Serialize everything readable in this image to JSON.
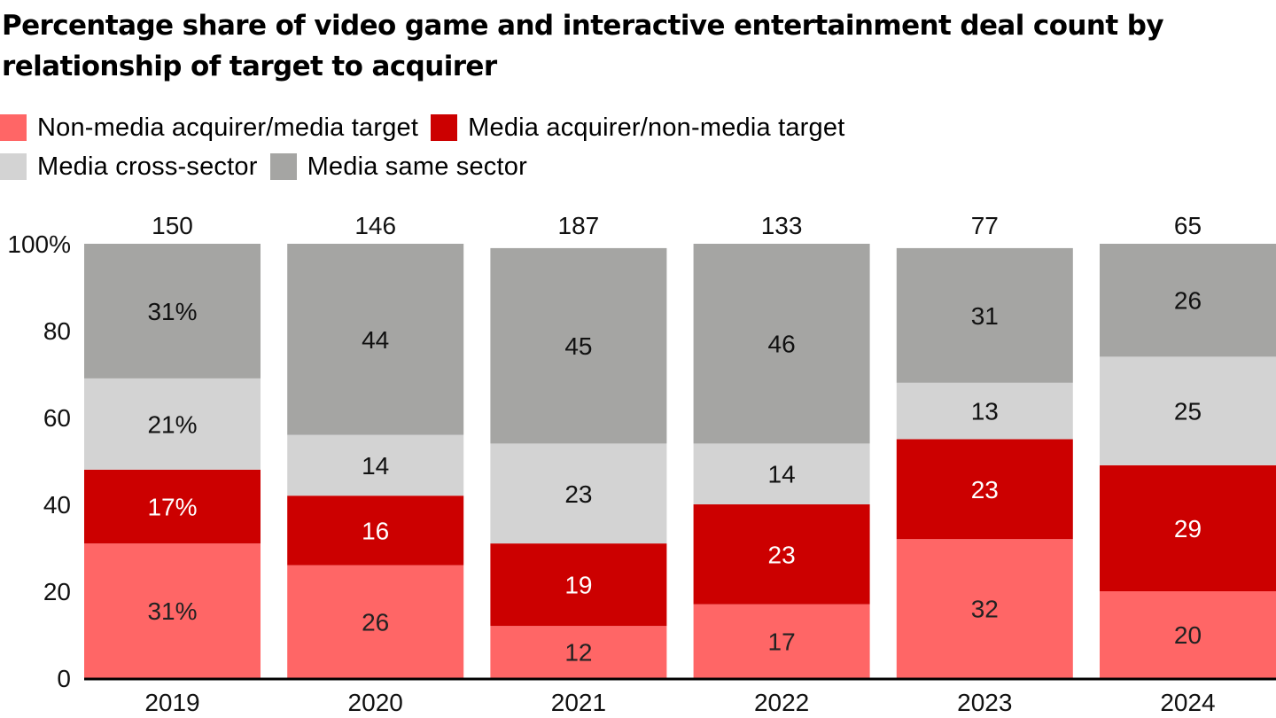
{
  "title": "Percentage share of video game and interactive entertainment deal count by relationship of target to acquirer",
  "legend": {
    "rows": [
      [
        {
          "label": "Non-media acquirer/media target",
          "color": "#ff6666"
        },
        {
          "label": "Media acquirer/non-media target",
          "color": "#cc0000"
        }
      ],
      [
        {
          "label": "Media cross-sector",
          "color": "#d3d3d3"
        },
        {
          "label": "Media same sector",
          "color": "#a5a5a3"
        }
      ]
    ]
  },
  "chart_data": {
    "type": "bar",
    "stacked": true,
    "title": "Percentage share of video game and interactive entertainment deal count by relationship of target to acquirer",
    "xlabel": "",
    "ylabel": "",
    "ylim": [
      0,
      100
    ],
    "yticks": [
      0,
      20,
      40,
      60,
      80,
      100
    ],
    "ytick_labels": [
      "0",
      "20",
      "40",
      "60",
      "80",
      "100%"
    ],
    "grid": false,
    "legend_position": "top-left",
    "categories": [
      "2019",
      "2020",
      "2021",
      "2022",
      "2023",
      "2024"
    ],
    "totals": [
      "150",
      "146",
      "187",
      "133",
      "77",
      "65"
    ],
    "series": [
      {
        "name": "Non-media acquirer/media target",
        "color": "#ff6666",
        "label_color": "#222222",
        "values": [
          31,
          26,
          12,
          17,
          32,
          20
        ],
        "labels": [
          "31%",
          "26",
          "12",
          "17",
          "32",
          "20"
        ]
      },
      {
        "name": "Media acquirer/non-media target",
        "color": "#cc0000",
        "label_color": "#ffffff",
        "values": [
          17,
          16,
          19,
          23,
          23,
          29
        ],
        "labels": [
          "17%",
          "16",
          "19",
          "23",
          "23",
          "29"
        ]
      },
      {
        "name": "Media cross-sector",
        "color": "#d3d3d3",
        "label_color": "#111111",
        "values": [
          21,
          14,
          23,
          14,
          13,
          25
        ],
        "labels": [
          "21%",
          "14",
          "23",
          "14",
          "13",
          "25"
        ]
      },
      {
        "name": "Media same sector",
        "color": "#a5a5a3",
        "label_color": "#111111",
        "values": [
          31,
          44,
          45,
          46,
          31,
          26
        ],
        "labels": [
          "31%",
          "44",
          "45",
          "46",
          "31",
          "26"
        ]
      }
    ]
  }
}
